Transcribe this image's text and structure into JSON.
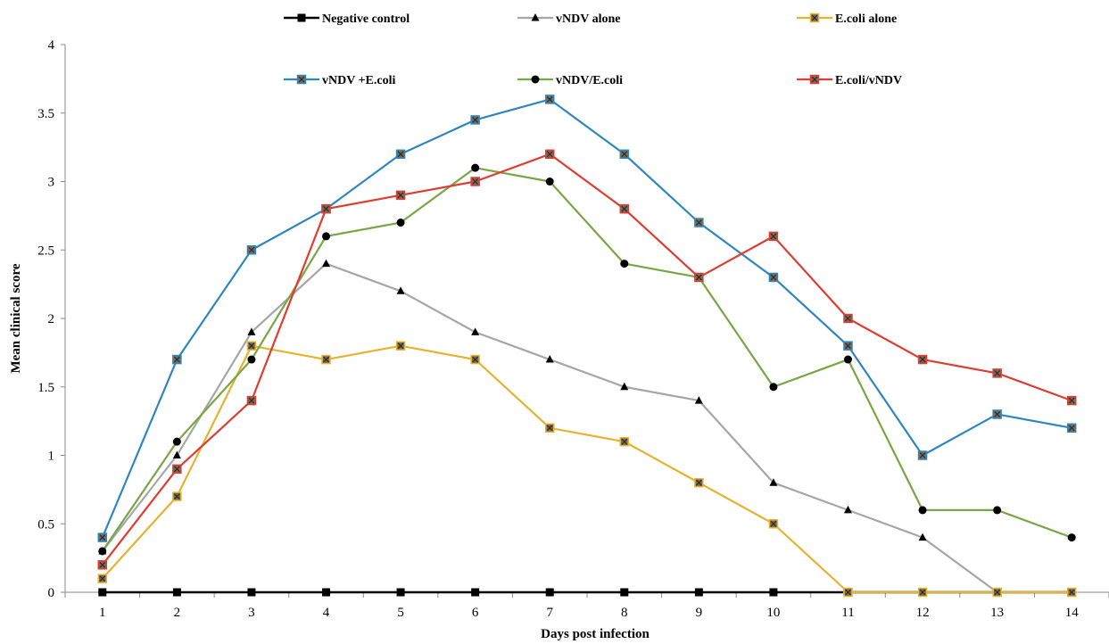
{
  "chart_data": {
    "type": "line",
    "title": "",
    "xlabel": "Days post infection",
    "ylabel": "Mean clinical score",
    "ylim": [
      0,
      4
    ],
    "yticks": [
      "0",
      "0.5",
      "1",
      "1.5",
      "2",
      "2.5",
      "3",
      "3.5",
      "4"
    ],
    "categories": [
      "1",
      "2",
      "3",
      "4",
      "5",
      "6",
      "7",
      "8",
      "9",
      "10",
      "11",
      "12",
      "13",
      "14"
    ],
    "grid": false,
    "legend_position": "top",
    "series": [
      {
        "name": "Negative control",
        "color": "#000000",
        "marker": "square-filled",
        "values": [
          0,
          0,
          0,
          0,
          0,
          0,
          0,
          0,
          0,
          0,
          0,
          0,
          0,
          0
        ]
      },
      {
        "name": "vNDV alone",
        "color": "#a6a6a6",
        "marker": "triangle",
        "values": [
          0.3,
          1.0,
          1.9,
          2.4,
          2.2,
          1.9,
          1.7,
          1.5,
          1.4,
          0.8,
          0.6,
          0.4,
          0,
          0
        ]
      },
      {
        "name": "E.coli alone",
        "color": "#e6b32e",
        "marker": "square-hatched",
        "values": [
          0.1,
          0.7,
          1.8,
          1.7,
          1.8,
          1.7,
          1.2,
          1.1,
          0.8,
          0.5,
          0,
          0,
          0,
          0
        ]
      },
      {
        "name": "vNDV +E.coli",
        "color": "#2e86c1",
        "marker": "square-hatched",
        "values": [
          0.4,
          1.7,
          2.5,
          2.8,
          3.2,
          3.45,
          3.6,
          3.2,
          2.7,
          2.3,
          1.8,
          1.0,
          1.3,
          1.2
        ]
      },
      {
        "name": "vNDV/E.coli",
        "color": "#77a745",
        "marker": "circle",
        "values": [
          0.3,
          1.1,
          1.7,
          2.6,
          2.7,
          3.1,
          3.0,
          2.4,
          2.3,
          1.5,
          1.7,
          0.6,
          0.6,
          0.4
        ]
      },
      {
        "name": "E.coli/vNDV",
        "color": "#e03c31",
        "marker": "square-hatched",
        "values": [
          0.2,
          0.9,
          1.4,
          2.8,
          2.9,
          3.0,
          3.2,
          2.8,
          2.3,
          2.6,
          2.0,
          1.7,
          1.6,
          1.4
        ]
      }
    ]
  }
}
